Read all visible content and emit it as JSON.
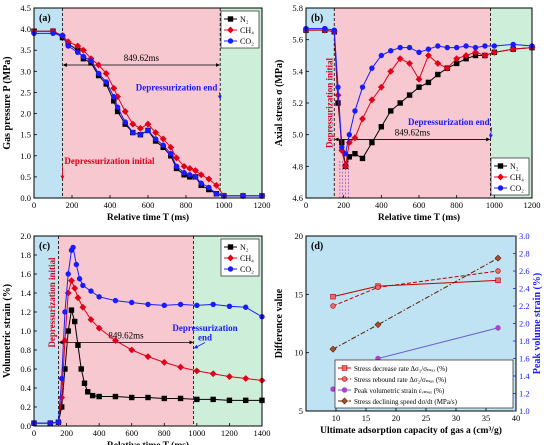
{
  "chart_data": [
    {
      "type": "line",
      "panel_label": "(a)",
      "xlabel": "Relative time  T (ms)",
      "ylabel": "Gas pressure  P (MPa)",
      "xlim": [
        0,
        1200
      ],
      "ylim": [
        0,
        4.5
      ],
      "xticks": [
        0,
        200,
        400,
        600,
        800,
        1000,
        1200
      ],
      "yticks": [
        0.0,
        0.5,
        1.0,
        1.5,
        2.0,
        2.5,
        3.0,
        3.5,
        4.0,
        4.5
      ],
      "ytick_decimals": 1,
      "regions": [
        {
          "from": 0,
          "to": 150,
          "color": "#bfe3f2"
        },
        {
          "from": 150,
          "to": 980,
          "color": "#f7c8cf"
        },
        {
          "from": 980,
          "to": 1200,
          "color": "#cdeed8"
        }
      ],
      "vlines": [
        150,
        980
      ],
      "interval": {
        "x1": 150,
        "x2": 980,
        "y": 3.15,
        "label": "849.62ms"
      },
      "annotations": [
        {
          "text": "Depressurization initial",
          "color": "#e0001a",
          "x": 160,
          "y": 0.8,
          "anchor": "start",
          "arrow_to": [
            150,
            0.45
          ]
        },
        {
          "text": "Depressurization end",
          "color": "#1a1aff",
          "x": 965,
          "y": 2.55,
          "anchor": "end",
          "arrow_to": [
            980,
            2.35
          ]
        }
      ],
      "legend": "top-right",
      "series": [
        {
          "name": "N₂",
          "color": "#000000",
          "marker": "square",
          "x": [
            0,
            100,
            150,
            180,
            230,
            260,
            300,
            340,
            380,
            420,
            440,
            480,
            520,
            560,
            600,
            640,
            680,
            720,
            750,
            790,
            820,
            850,
            880,
            920,
            960,
            1000,
            1100,
            1200
          ],
          "y": [
            3.95,
            3.95,
            3.8,
            3.65,
            3.5,
            3.3,
            3.2,
            2.9,
            2.7,
            2.3,
            2.05,
            1.75,
            1.55,
            1.5,
            1.6,
            1.35,
            1.2,
            1.0,
            0.7,
            0.55,
            0.5,
            0.5,
            0.3,
            0.2,
            0.1,
            0.05,
            0.05,
            0.05
          ]
        },
        {
          "name": "CH₄",
          "color": "#e0001a",
          "marker": "diamond",
          "x": [
            0,
            100,
            150,
            180,
            230,
            260,
            300,
            340,
            380,
            420,
            440,
            480,
            520,
            560,
            600,
            640,
            680,
            720,
            750,
            790,
            820,
            850,
            880,
            920,
            960,
            1000,
            1100,
            1200
          ],
          "y": [
            3.95,
            3.95,
            3.85,
            3.7,
            3.6,
            3.5,
            3.3,
            3.15,
            2.95,
            2.6,
            2.4,
            2.05,
            1.75,
            1.65,
            1.75,
            1.55,
            1.4,
            1.2,
            0.95,
            0.75,
            0.7,
            0.65,
            0.55,
            0.45,
            0.3,
            0.05,
            0.05,
            0.05
          ]
        },
        {
          "name": "CO₂",
          "color": "#1a1aff",
          "marker": "circle",
          "x": [
            0,
            100,
            150,
            180,
            230,
            260,
            300,
            340,
            380,
            420,
            440,
            480,
            520,
            560,
            600,
            640,
            680,
            720,
            750,
            790,
            820,
            850,
            880,
            920,
            960,
            1000,
            1100,
            1200
          ],
          "y": [
            3.9,
            3.9,
            3.85,
            3.6,
            3.45,
            3.35,
            3.25,
            2.95,
            2.75,
            2.4,
            2.15,
            1.8,
            1.55,
            1.5,
            1.6,
            1.4,
            1.25,
            1.05,
            0.75,
            0.6,
            0.55,
            0.5,
            0.35,
            0.25,
            0.1,
            0.05,
            0.05,
            0.05
          ]
        }
      ]
    },
    {
      "type": "line",
      "panel_label": "(b)",
      "xlabel": "Relative time  T (ms)",
      "ylabel": "Axial stress σ (MPa)",
      "xlim": [
        0,
        1200
      ],
      "ylim": [
        4.6,
        5.8
      ],
      "xticks": [
        0,
        200,
        400,
        600,
        800,
        1000,
        1200
      ],
      "yticks": [
        4.6,
        4.8,
        5.0,
        5.2,
        5.4,
        5.6,
        5.8
      ],
      "ytick_decimals": 1,
      "regions": [
        {
          "from": 0,
          "to": 150,
          "color": "#bfe3f2"
        },
        {
          "from": 150,
          "to": 980,
          "color": "#f7c8cf"
        },
        {
          "from": 980,
          "to": 1200,
          "color": "#cdeed8"
        }
      ],
      "vlines": [
        150,
        980
      ],
      "dashed_drops": [
        180,
        195,
        210,
        225
      ],
      "interval": {
        "x1": 150,
        "x2": 980,
        "y": 4.97,
        "label": "849.62ms"
      },
      "annotations": [
        {
          "text": "Depressurization initial",
          "color": "#e0001a",
          "x": 140,
          "y": 5.2,
          "anchor": "middle",
          "rotate": -90
        },
        {
          "text": "Depressurization end",
          "color": "#1a1aff",
          "x": 975,
          "y": 5.06,
          "anchor": "end",
          "arrow_to": [
            980,
            4.98
          ]
        }
      ],
      "legend": "bottom-right",
      "series": [
        {
          "name": "N₂",
          "color": "#000000",
          "marker": "square",
          "x": [
            0,
            100,
            150,
            170,
            190,
            210,
            230,
            260,
            300,
            350,
            400,
            450,
            500,
            550,
            600,
            650,
            700,
            750,
            800,
            850,
            900,
            950,
            1000,
            1100,
            1200
          ],
          "y": [
            5.66,
            5.66,
            5.65,
            5.2,
            4.95,
            4.8,
            4.86,
            4.88,
            4.85,
            4.95,
            5.05,
            5.15,
            5.2,
            5.25,
            5.3,
            5.33,
            5.38,
            5.42,
            5.45,
            5.48,
            5.5,
            5.5,
            5.52,
            5.54,
            5.55
          ]
        },
        {
          "name": "CH₄",
          "color": "#e0001a",
          "marker": "diamond",
          "x": [
            0,
            100,
            150,
            170,
            190,
            210,
            230,
            260,
            300,
            350,
            400,
            450,
            500,
            550,
            600,
            650,
            700,
            750,
            800,
            850,
            900,
            950,
            1000,
            1100,
            1200
          ],
          "y": [
            5.66,
            5.66,
            5.65,
            5.25,
            4.9,
            4.8,
            4.95,
            4.98,
            5.1,
            5.22,
            5.3,
            5.4,
            5.48,
            5.45,
            5.35,
            5.5,
            5.45,
            5.42,
            5.48,
            5.5,
            5.52,
            5.5,
            5.52,
            5.54,
            5.55
          ]
        },
        {
          "name": "CO₂",
          "color": "#1a1aff",
          "marker": "circle",
          "x": [
            0,
            100,
            150,
            170,
            190,
            210,
            230,
            260,
            300,
            350,
            400,
            450,
            500,
            550,
            600,
            650,
            700,
            750,
            800,
            850,
            900,
            950,
            1000,
            1100,
            1200
          ],
          "y": [
            5.67,
            5.67,
            5.66,
            5.3,
            4.92,
            4.88,
            5.0,
            5.15,
            5.3,
            5.42,
            5.5,
            5.53,
            5.55,
            5.55,
            5.52,
            5.54,
            5.56,
            5.55,
            5.55,
            5.56,
            5.55,
            5.56,
            5.56,
            5.57,
            5.56
          ]
        }
      ]
    },
    {
      "type": "line",
      "panel_label": "(c)",
      "xlabel": "Relative time  T (ms)",
      "ylabel": "Volumetric strain (%)",
      "xlim": [
        0,
        1400
      ],
      "ylim": [
        0.0,
        2.0
      ],
      "xticks": [
        0,
        200,
        400,
        600,
        800,
        1000,
        1200,
        1400
      ],
      "yticks": [
        0.0,
        0.2,
        0.4,
        0.6,
        0.8,
        1.0,
        1.2,
        1.4,
        1.6,
        1.8,
        2.0
      ],
      "ytick_decimals": 1,
      "regions": [
        {
          "from": 0,
          "to": 150,
          "color": "#bfe3f2"
        },
        {
          "from": 150,
          "to": 980,
          "color": "#f7c8cf"
        },
        {
          "from": 980,
          "to": 1400,
          "color": "#cdeed8"
        }
      ],
      "vlines": [
        150,
        980
      ],
      "interval": {
        "x1": 150,
        "x2": 980,
        "y": 0.88,
        "label": "849.62ms"
      },
      "annotations": [
        {
          "text": "Depressurization initial",
          "color": "#e0001a",
          "x": 130,
          "y": 1.3,
          "anchor": "middle",
          "rotate": -90
        },
        {
          "text": "Depressurization",
          "color": "#1a1aff",
          "x": 1050,
          "y": 1.0,
          "anchor": "middle"
        },
        {
          "text": "end",
          "color": "#1a1aff",
          "x": 1050,
          "y": 0.9,
          "anchor": "middle",
          "arrow_to": [
            985,
            0.82
          ]
        }
      ],
      "legend": "top-right",
      "series": [
        {
          "name": "N₂",
          "color": "#000000",
          "marker": "square",
          "x": [
            0,
            100,
            150,
            170,
            190,
            210,
            230,
            250,
            270,
            290,
            310,
            330,
            360,
            400,
            500,
            600,
            700,
            800,
            900,
            1000,
            1100,
            1200,
            1300,
            1400
          ],
          "y": [
            0.03,
            0.03,
            0.04,
            0.2,
            0.6,
            1.0,
            1.22,
            1.1,
            0.85,
            0.6,
            0.45,
            0.36,
            0.32,
            0.31,
            0.31,
            0.3,
            0.3,
            0.29,
            0.29,
            0.28,
            0.28,
            0.27,
            0.27,
            0.27
          ]
        },
        {
          "name": "CH₄",
          "color": "#e0001a",
          "marker": "diamond",
          "x": [
            0,
            100,
            150,
            170,
            190,
            210,
            230,
            250,
            270,
            300,
            350,
            400,
            500,
            600,
            700,
            800,
            900,
            1000,
            1100,
            1200,
            1300,
            1400
          ],
          "y": [
            0.03,
            0.03,
            0.04,
            0.3,
            0.9,
            1.4,
            1.53,
            1.45,
            1.35,
            1.25,
            1.12,
            1.03,
            0.9,
            0.8,
            0.73,
            0.67,
            0.62,
            0.58,
            0.55,
            0.52,
            0.5,
            0.48
          ]
        },
        {
          "name": "CO₂",
          "color": "#1a1aff",
          "marker": "circle",
          "x": [
            0,
            100,
            150,
            170,
            190,
            210,
            230,
            240,
            260,
            280,
            300,
            350,
            400,
            500,
            600,
            700,
            800,
            900,
            1000,
            1100,
            1200,
            1300,
            1400
          ],
          "y": [
            0.03,
            0.03,
            0.04,
            0.5,
            1.2,
            1.6,
            1.85,
            1.88,
            1.7,
            1.55,
            1.48,
            1.42,
            1.36,
            1.32,
            1.3,
            1.28,
            1.27,
            1.28,
            1.27,
            1.28,
            1.26,
            1.25,
            1.15
          ]
        }
      ]
    },
    {
      "type": "line",
      "panel_label": "(d)",
      "xlabel": "Ultimate adsorption capacity of gas  a (cm³/g)",
      "ylabel": "Difference value",
      "y2label": "Peak volume strain (%)",
      "xlim": [
        5,
        40
      ],
      "ylim": [
        5,
        20
      ],
      "y2lim": [
        1.0,
        3.0
      ],
      "xticks": [
        10,
        15,
        20,
        25,
        30,
        35,
        40
      ],
      "yticks": [
        5,
        10,
        15,
        20
      ],
      "ytick_decimals": 0,
      "y2ticks": [
        1.0,
        1.2,
        1.4,
        1.6,
        1.8,
        2.0,
        2.2,
        2.4,
        2.6,
        2.8,
        3.0
      ],
      "y2tick_decimals": 1,
      "legend": "bottom-right",
      "series": [
        {
          "name": "Stress decrease rate  Δσ₁/σₘₐₓ (%)",
          "color": "#c00000",
          "line": "solid",
          "marker": "square",
          "fill": "#e07070",
          "axis": "left",
          "x": [
            9.5,
            17.0,
            37.0
          ],
          "y": [
            14.8,
            15.7,
            16.2
          ]
        },
        {
          "name": "Stress rebound rate  Δσ₂/σₘₐₓ (%)",
          "color": "#c00000",
          "line": "dashed",
          "marker": "circle",
          "fill": "#e07070",
          "axis": "left",
          "x": [
            9.5,
            17.0,
            37.0
          ],
          "y": [
            14.0,
            15.6,
            17.0
          ]
        },
        {
          "name": "Peak volumetric strain  εᵥₘₐₓ (%)",
          "color": "#6a5acd",
          "line": "solid",
          "marker": "circle",
          "fill": "#cc33cc",
          "axis": "right",
          "x": [
            9.5,
            17.0,
            37.0
          ],
          "y": [
            1.25,
            1.6,
            1.95
          ]
        },
        {
          "name": "Stress declining speed  dσ/dt (MPa/s)",
          "color": "#5a1a00",
          "line": "dashdot",
          "marker": "diamond",
          "fill": "#a0522d",
          "axis": "left",
          "x": [
            9.5,
            17.0,
            37.0
          ],
          "y": [
            10.3,
            12.4,
            18.1
          ]
        }
      ]
    }
  ]
}
